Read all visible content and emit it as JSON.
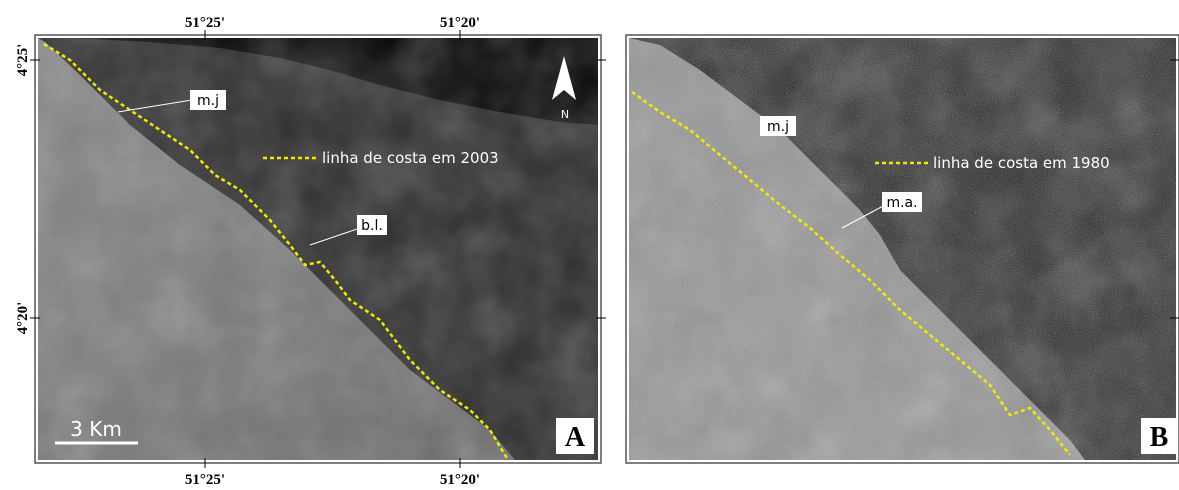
{
  "panel_a": {
    "x_labels_top": [
      "51°25'",
      "51°20'"
    ],
    "x_labels_bottom": [
      "51°25'",
      "51°20'"
    ],
    "y_labels": [
      "4°25'",
      "4°20'"
    ],
    "labels": {
      "mj": "m.j",
      "bl": "b.l."
    },
    "legend": "linha de costa em 2003",
    "north": "N",
    "scale": "3 Km",
    "letter": "A"
  },
  "panel_b": {
    "labels": {
      "mj": "m.j",
      "ma": "m.a."
    },
    "legend": "linha de costa em 1980",
    "letter": "B"
  }
}
